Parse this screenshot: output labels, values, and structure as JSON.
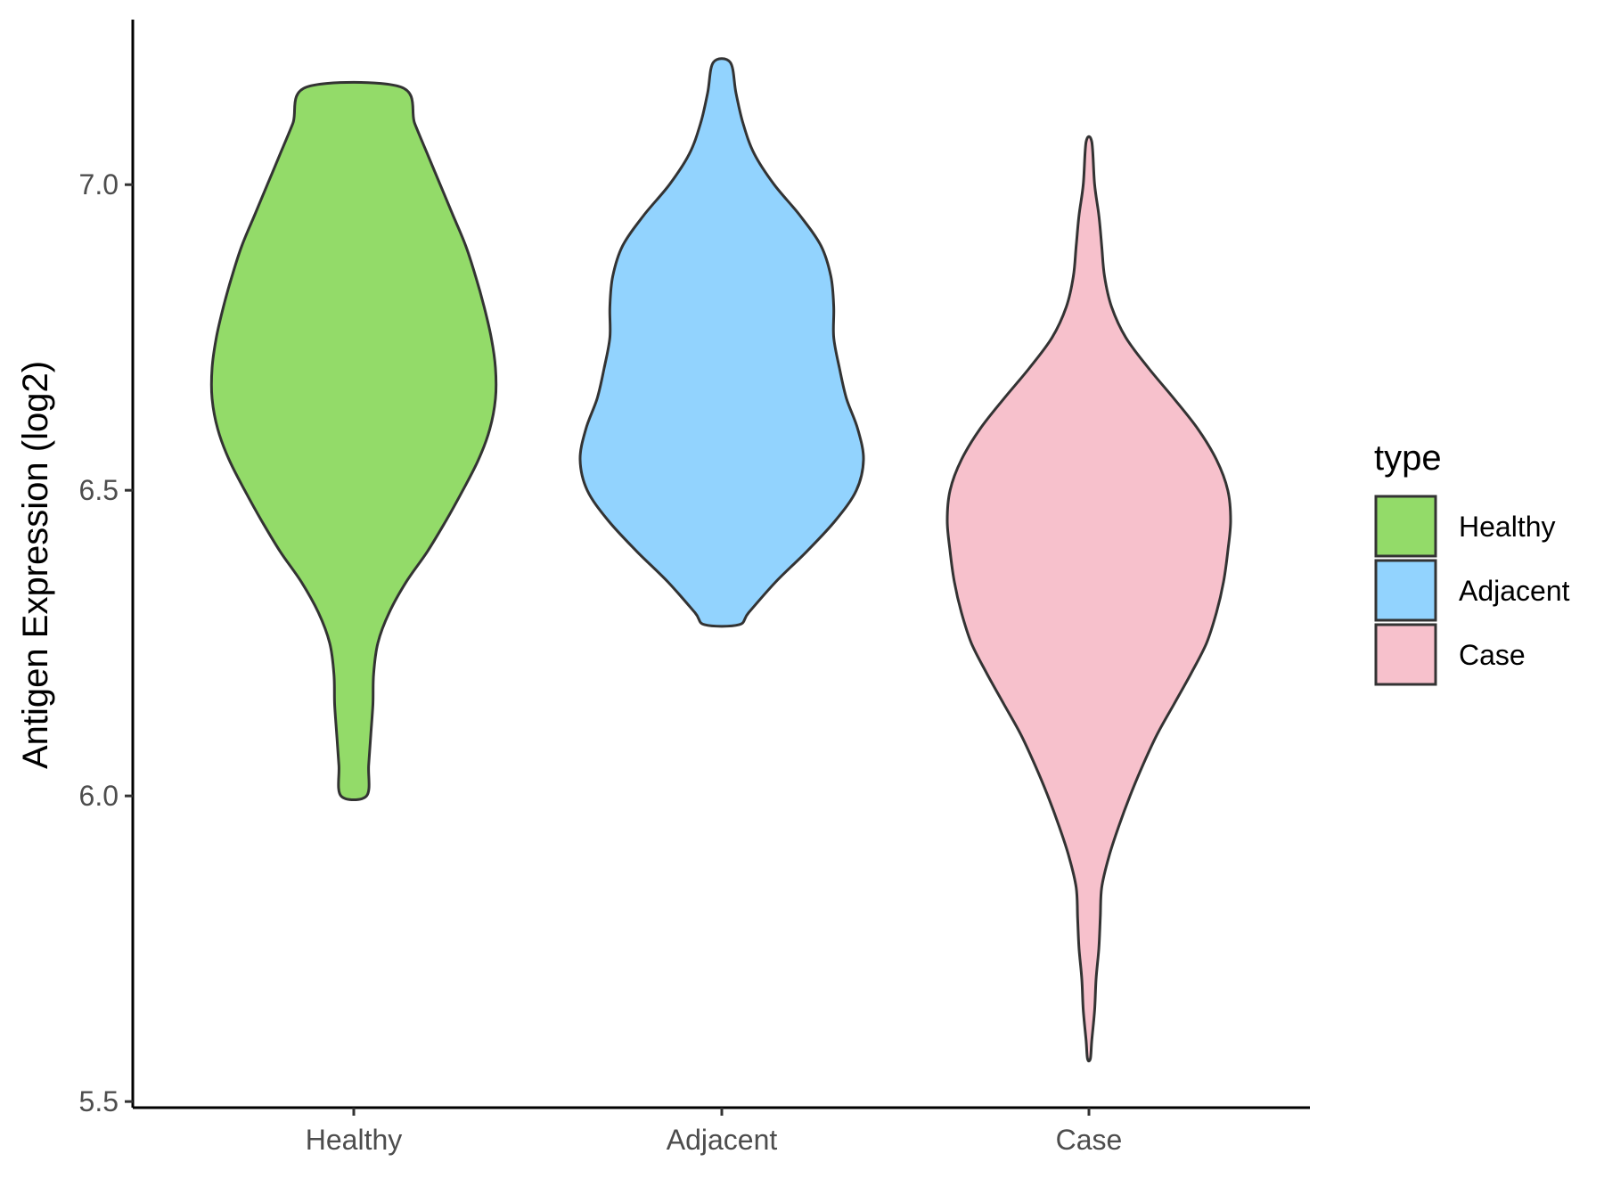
{
  "chart_data": {
    "type": "violin",
    "title": "",
    "xlabel": "",
    "ylabel": "Antigen Expression (log2)",
    "ylim": [
      5.49,
      7.27
    ],
    "yticks": [
      {
        "value": 5.5,
        "label": "5.5"
      },
      {
        "value": 6.0,
        "label": "6.0"
      },
      {
        "value": 6.5,
        "label": "6.5"
      },
      {
        "value": 7.0,
        "label": "7.0"
      }
    ],
    "categories": [
      "Healthy",
      "Adjacent",
      "Case"
    ],
    "grid": false,
    "legend": {
      "title": "type",
      "position": "right",
      "entries": [
        "Healthy",
        "Adjacent",
        "Case"
      ]
    },
    "series": [
      {
        "name": "Healthy",
        "color": "#93DB69",
        "min": 6.0,
        "max": 7.16,
        "density_profile": [
          [
            6.0,
            0.09
          ],
          [
            6.05,
            0.105
          ],
          [
            6.1,
            0.12
          ],
          [
            6.15,
            0.135
          ],
          [
            6.2,
            0.14
          ],
          [
            6.25,
            0.17
          ],
          [
            6.3,
            0.25
          ],
          [
            6.35,
            0.37
          ],
          [
            6.4,
            0.52
          ],
          [
            6.45,
            0.65
          ],
          [
            6.5,
            0.77
          ],
          [
            6.55,
            0.88
          ],
          [
            6.6,
            0.96
          ],
          [
            6.65,
            1.0
          ],
          [
            6.7,
            1.0
          ],
          [
            6.75,
            0.97
          ],
          [
            6.8,
            0.92
          ],
          [
            6.85,
            0.86
          ],
          [
            6.9,
            0.79
          ],
          [
            6.95,
            0.7
          ],
          [
            7.0,
            0.61
          ],
          [
            7.05,
            0.52
          ],
          [
            7.1,
            0.43
          ],
          [
            7.16,
            0.33
          ]
        ]
      },
      {
        "name": "Adjacent",
        "color": "#92D3FE",
        "min": 6.28,
        "max": 7.2,
        "density_profile": [
          [
            6.28,
            0.12
          ],
          [
            6.3,
            0.19
          ],
          [
            6.35,
            0.38
          ],
          [
            6.4,
            0.6
          ],
          [
            6.45,
            0.8
          ],
          [
            6.5,
            0.95
          ],
          [
            6.55,
            1.0
          ],
          [
            6.6,
            0.96
          ],
          [
            6.65,
            0.88
          ],
          [
            6.7,
            0.83
          ],
          [
            6.75,
            0.79
          ],
          [
            6.8,
            0.79
          ],
          [
            6.85,
            0.77
          ],
          [
            6.9,
            0.7
          ],
          [
            6.95,
            0.55
          ],
          [
            7.0,
            0.37
          ],
          [
            7.05,
            0.23
          ],
          [
            7.1,
            0.15
          ],
          [
            7.15,
            0.1
          ],
          [
            7.2,
            0.06
          ]
        ]
      },
      {
        "name": "Case",
        "color": "#F7C1CC",
        "min": 5.57,
        "max": 7.07,
        "density_profile": [
          [
            5.57,
            0.01
          ],
          [
            5.6,
            0.02
          ],
          [
            5.65,
            0.04
          ],
          [
            5.7,
            0.05
          ],
          [
            5.75,
            0.07
          ],
          [
            5.8,
            0.08
          ],
          [
            5.85,
            0.09
          ],
          [
            5.9,
            0.14
          ],
          [
            5.95,
            0.21
          ],
          [
            6.0,
            0.29
          ],
          [
            6.05,
            0.38
          ],
          [
            6.1,
            0.48
          ],
          [
            6.15,
            0.6
          ],
          [
            6.2,
            0.72
          ],
          [
            6.25,
            0.83
          ],
          [
            6.3,
            0.9
          ],
          [
            6.35,
            0.95
          ],
          [
            6.4,
            0.98
          ],
          [
            6.45,
            1.0
          ],
          [
            6.5,
            0.98
          ],
          [
            6.55,
            0.9
          ],
          [
            6.6,
            0.77
          ],
          [
            6.65,
            0.6
          ],
          [
            6.7,
            0.42
          ],
          [
            6.75,
            0.26
          ],
          [
            6.8,
            0.16
          ],
          [
            6.85,
            0.11
          ],
          [
            6.9,
            0.09
          ],
          [
            6.95,
            0.07
          ],
          [
            7.0,
            0.04
          ],
          [
            7.07,
            0.02
          ]
        ]
      }
    ]
  }
}
